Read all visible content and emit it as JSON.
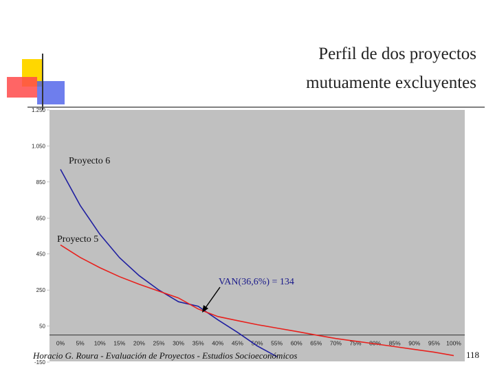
{
  "chart_data": {
    "type": "line",
    "title": [
      "Perfil de dos proyectos",
      "mutuamente excluyentes"
    ],
    "categories": [
      "0%",
      "5%",
      "10%",
      "15%",
      "20%",
      "25%",
      "30%",
      "35%",
      "40%",
      "45%",
      "50%",
      "55%",
      "60%",
      "65%",
      "70%",
      "75%",
      "80%",
      "85%",
      "90%",
      "95%",
      "100%"
    ],
    "series": [
      {
        "name": "Proyecto 6",
        "color": "#1f1fa0",
        "values": [
          920,
          720,
          560,
          430,
          330,
          250,
          185,
          160,
          85,
          15,
          -60,
          -120,
          null,
          null,
          null,
          null,
          null,
          null,
          null,
          null,
          null
        ]
      },
      {
        "name": "Proyecto 5",
        "color": "#e8201c",
        "values": [
          500,
          431,
          374,
          324,
          282,
          244,
          206,
          145,
          103,
          80,
          58,
          39,
          20,
          0,
          -19,
          -34,
          -49,
          -64,
          -80,
          -95,
          -114
        ]
      }
    ],
    "ylim": [
      -150,
      1250
    ],
    "yticks": [
      {
        "value": -150,
        "label": "-150"
      },
      50,
      250,
      450,
      650,
      850,
      {
        "value": 1050,
        "label": "1.050"
      },
      {
        "value": 1250,
        "label": "1.250"
      }
    ],
    "annotations": [
      "VAN(36,6%) = 134"
    ],
    "footer": "Horacio G. Roura - Evaluación de Proyectos - Estudios Socioeconómicos",
    "page_number": "118"
  }
}
